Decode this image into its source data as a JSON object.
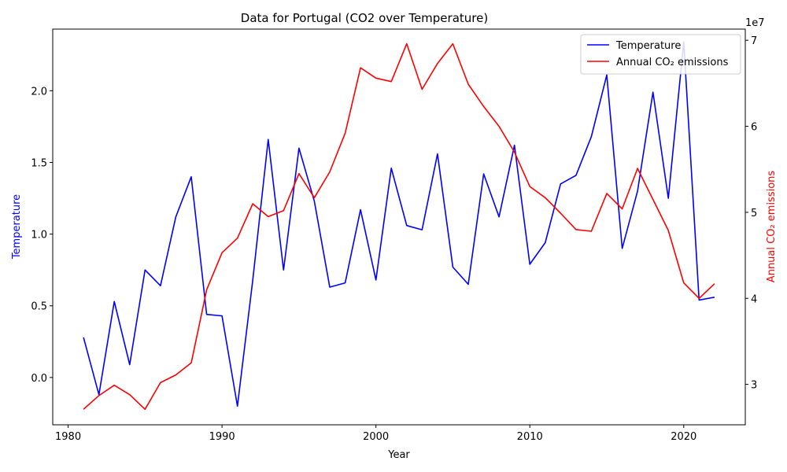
{
  "chart_data": {
    "type": "line",
    "title": "Data for Portugal (CO2 over Temperature)",
    "xlabel": "Year",
    "xlim": [
      1979,
      2024
    ],
    "x_ticks": [
      1980,
      1990,
      2000,
      2010,
      2020
    ],
    "left_axis": {
      "label": "Temperature",
      "color": "#0000ff",
      "ylim": [
        -0.33,
        2.43
      ],
      "ticks": [
        0.0,
        0.5,
        1.0,
        1.5,
        2.0
      ],
      "tick_labels": [
        "0.0",
        "0.5",
        "1.0",
        "1.5",
        "2.0"
      ]
    },
    "right_axis": {
      "label": "Annual CO₂ emissions",
      "color": "#ff0000",
      "ylim": [
        25300000,
        71300000
      ],
      "ticks": [
        30000000,
        40000000,
        50000000,
        60000000,
        70000000
      ],
      "tick_labels": [
        "3",
        "4",
        "5",
        "6",
        "7"
      ],
      "offset_label": "1e7"
    },
    "legend": {
      "position": "top-right"
    },
    "x": [
      1981,
      1982,
      1983,
      1984,
      1985,
      1986,
      1987,
      1988,
      1989,
      1990,
      1991,
      1992,
      1993,
      1994,
      1995,
      1996,
      1997,
      1998,
      1999,
      2000,
      2001,
      2002,
      2003,
      2004,
      2005,
      2006,
      2007,
      2008,
      2009,
      2010,
      2011,
      2012,
      2013,
      2014,
      2015,
      2016,
      2017,
      2018,
      2019,
      2020,
      2021,
      2022
    ],
    "series": [
      {
        "name": "Temperature",
        "axis": "left",
        "color": "#0000ff",
        "values": [
          0.28,
          -0.12,
          0.53,
          0.09,
          0.75,
          0.64,
          1.12,
          1.4,
          0.44,
          0.43,
          -0.2,
          0.68,
          1.66,
          0.75,
          1.6,
          1.23,
          0.63,
          0.66,
          1.17,
          0.68,
          1.46,
          1.06,
          1.03,
          1.56,
          0.77,
          0.65,
          1.42,
          1.12,
          1.62,
          0.79,
          0.94,
          1.35,
          1.41,
          1.68,
          2.11,
          0.9,
          1.3,
          1.99,
          1.25,
          2.34,
          0.54,
          0.56
        ]
      },
      {
        "name": "Annual CO₂ emissions",
        "axis": "right",
        "color": "#ff0000",
        "values": [
          27100000,
          28700000,
          29900000,
          28800000,
          27100000,
          30200000,
          31100000,
          32500000,
          41000000,
          45300000,
          47000000,
          51000000,
          49500000,
          50200000,
          54500000,
          51700000,
          54700000,
          59200000,
          66800000,
          65600000,
          65200000,
          69600000,
          64300000,
          67300000,
          69600000,
          64900000,
          62300000,
          60000000,
          57000000,
          53000000,
          51700000,
          49900000,
          48000000,
          47800000,
          52200000,
          50400000,
          55100000,
          51500000,
          47900000,
          41800000,
          40000000,
          41700000
        ]
      }
    ]
  }
}
